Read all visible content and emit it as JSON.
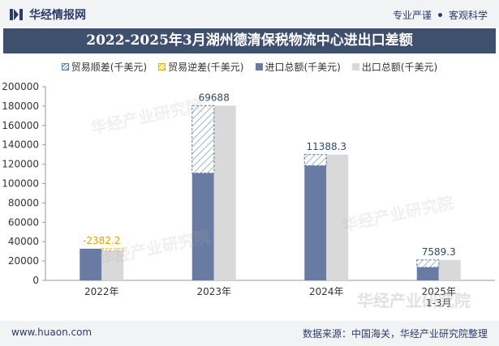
{
  "header": {
    "brand": "华经情报网",
    "tagline_1": "专业严谨",
    "tagline_2": "客观科学"
  },
  "chart_data": {
    "type": "bar",
    "title": "2022-2025年3月湖州德清保税物流中心进出口差额",
    "categories": [
      "2022年",
      "2023年",
      "2024年",
      "2025年\n1-3月"
    ],
    "series": [
      {
        "name": "进口总额(千美元)",
        "values": [
          32700,
          110800,
          118500,
          13500
        ],
        "color": "#6a7ba3"
      },
      {
        "name": "出口总额(千美元)",
        "values": [
          30300,
          180500,
          129900,
          21100
        ],
        "color": "#d9d9d9"
      }
    ],
    "balance": [
      {
        "value": "-2382.2",
        "type": "deficit"
      },
      {
        "value": "69688",
        "type": "surplus"
      },
      {
        "value": "11388.3",
        "type": "surplus"
      },
      {
        "value": "7589.3",
        "type": "surplus"
      }
    ],
    "legend": [
      "贸易顺差(千美元)",
      "贸易逆差(千美元)",
      "进口总额(千美元)",
      "出口总额(千美元)"
    ],
    "ylim": [
      0,
      200000
    ],
    "yticks": [
      0,
      20000,
      40000,
      60000,
      80000,
      100000,
      120000,
      140000,
      160000,
      180000,
      200000
    ],
    "colors": {
      "surplus": "#5a7fa0",
      "deficit": "#e8b100",
      "label_surplus": "#2d4a6b",
      "label_deficit": "#e8a000"
    }
  },
  "watermark": "华经产业研究院",
  "footer": {
    "website": "www.huaon.com",
    "source": "数据来源：中国海关，华经产业研究院整理"
  }
}
